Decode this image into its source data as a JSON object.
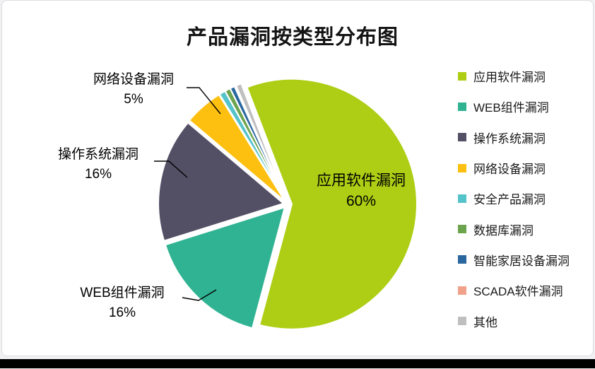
{
  "title": "产品漏洞按类型分布图",
  "chart_data": {
    "type": "pie",
    "title": "产品漏洞按类型分布图",
    "direction": "clockwise",
    "start_angle_deg": 339,
    "legend_position": "right",
    "slices": [
      {
        "name": "应用软件漏洞",
        "percent": 60,
        "color": "#ADCE14"
      },
      {
        "name": "WEB组件漏洞",
        "percent": 16,
        "color": "#30B392"
      },
      {
        "name": "操作系统漏洞",
        "percent": 16,
        "color": "#535066"
      },
      {
        "name": "网络设备漏洞",
        "percent": 5,
        "color": "#FDBF10"
      },
      {
        "name": "安全产品漏洞",
        "percent": 0.8,
        "color": "#55C3CA"
      },
      {
        "name": "数据库漏洞",
        "percent": 0.7,
        "color": "#6CA44D"
      },
      {
        "name": "智能家居设备漏洞",
        "percent": 0.6,
        "color": "#2A679E"
      },
      {
        "name": "SCADA软件漏洞",
        "percent": 0.2,
        "color": "#EFA189"
      },
      {
        "name": "其他",
        "percent": 0.7,
        "color": "#BFBFBF"
      }
    ],
    "labels": {
      "inside": {
        "line1": "应用软件漏洞",
        "line2": "60%"
      },
      "callouts": [
        {
          "line1": "网络设备漏洞",
          "line2": "5%"
        },
        {
          "line1": "操作系统漏洞",
          "line2": "16%"
        },
        {
          "line1": "WEB组件漏洞",
          "line2": "16%"
        }
      ]
    }
  }
}
